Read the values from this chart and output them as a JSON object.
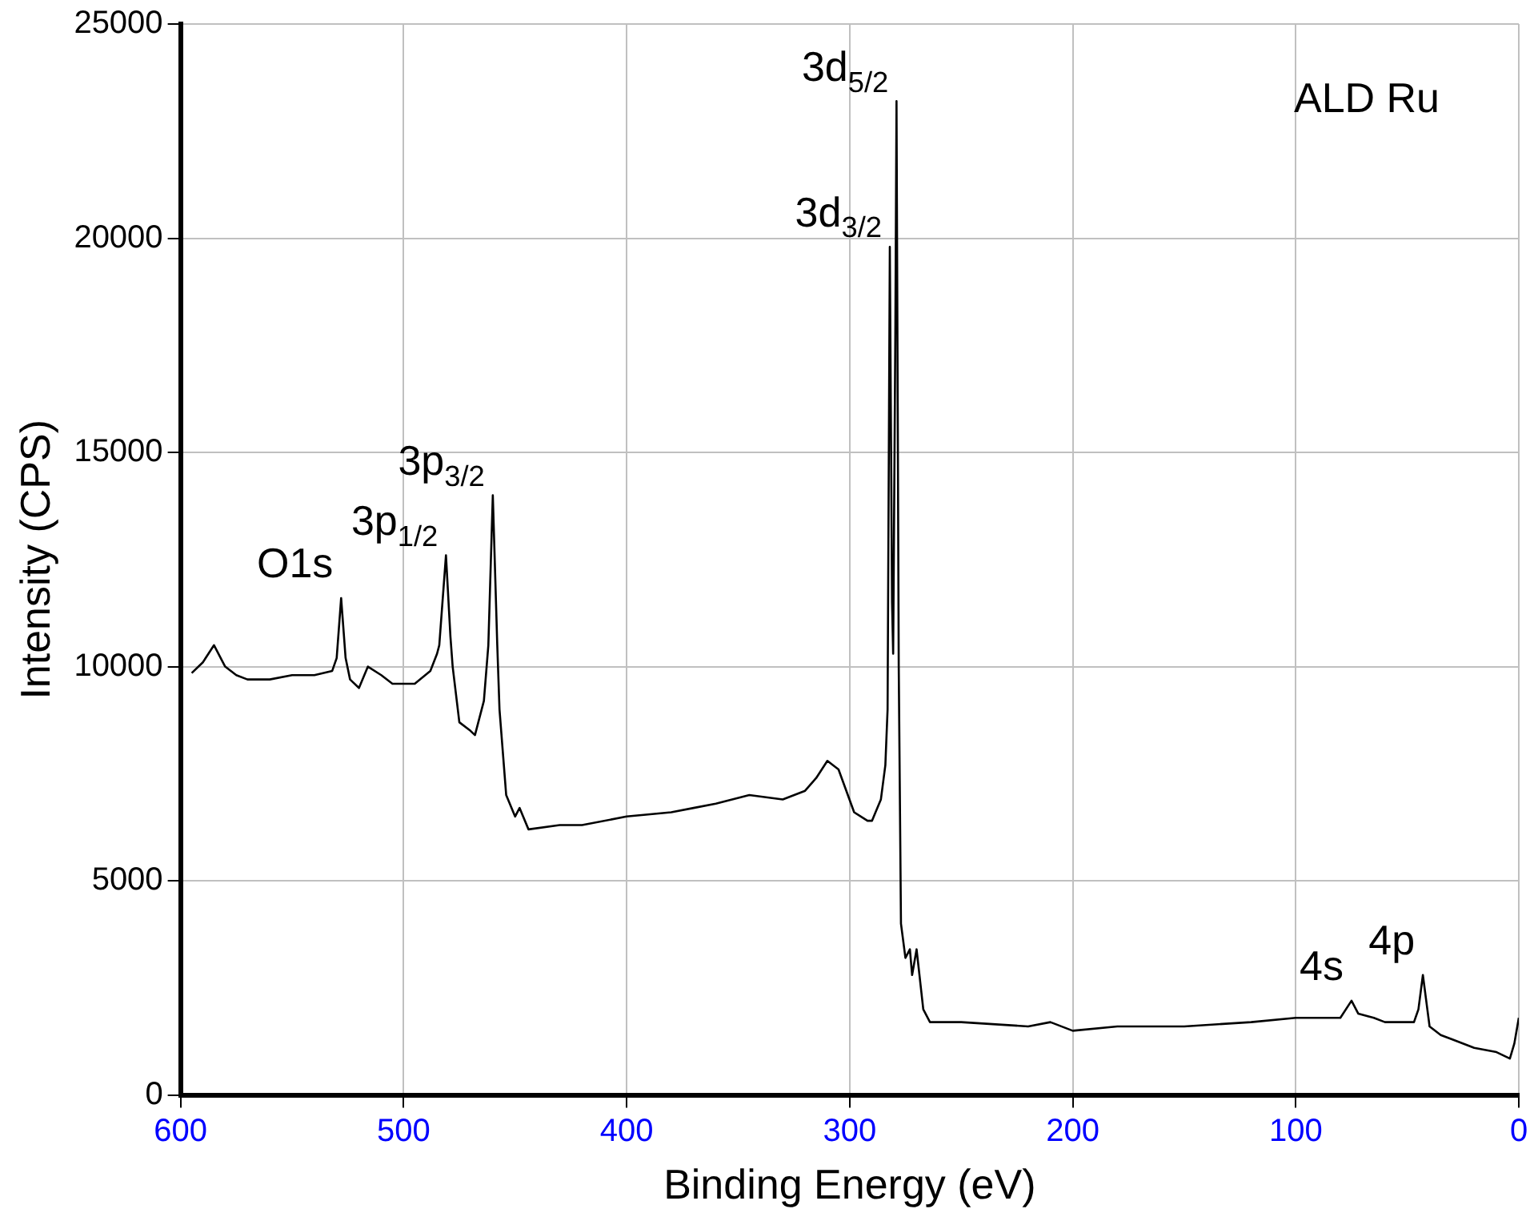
{
  "chart_data": {
    "type": "line",
    "xlabel": "Binding Energy (eV)",
    "ylabel": "Intensity (CPS)",
    "xlim": [
      600,
      0
    ],
    "xticks": [
      600,
      500,
      400,
      300,
      200,
      100,
      0
    ],
    "ylim": [
      0,
      25000
    ],
    "yticks": [
      0,
      5000,
      10000,
      15000,
      20000,
      25000
    ],
    "grid": true,
    "legend": false,
    "marker": "none",
    "line_style": "solid",
    "series": [
      {
        "color": "#000000",
        "x": [
          595,
          590,
          585,
          580,
          575,
          570,
          560,
          550,
          540,
          532,
          530,
          528,
          526,
          524,
          520,
          516,
          510,
          505,
          495,
          488,
          485,
          484,
          481,
          479,
          478,
          475,
          470,
          468,
          464,
          462,
          460,
          458,
          457,
          454,
          450,
          448,
          444,
          430,
          420,
          400,
          380,
          370,
          360,
          345,
          330,
          320,
          315,
          310,
          305,
          298,
          292,
          290,
          286,
          284,
          283,
          282,
          281,
          280.5,
          279.5,
          279,
          278,
          277,
          275,
          273,
          272,
          270,
          267,
          264,
          250,
          220,
          210,
          200,
          180,
          150,
          120,
          100,
          90,
          80,
          75,
          72,
          65,
          60,
          50,
          47,
          45,
          43,
          41,
          40,
          35,
          30,
          20,
          10,
          4,
          2,
          0
        ],
        "values": [
          9850,
          10100,
          10500,
          10000,
          9800,
          9700,
          9700,
          9800,
          9800,
          9900,
          10200,
          11600,
          10200,
          9700,
          9500,
          10000,
          9800,
          9600,
          9600,
          9900,
          10300,
          10500,
          12600,
          10700,
          10000,
          8700,
          8500,
          8400,
          9200,
          10500,
          14000,
          10500,
          9000,
          7000,
          6500,
          6700,
          6200,
          6300,
          6300,
          6500,
          6600,
          6700,
          6800,
          7000,
          6900,
          7100,
          7400,
          7800,
          7600,
          6600,
          6400,
          6400,
          6900,
          7700,
          9000,
          19800,
          11500,
          10300,
          18000,
          23200,
          10000,
          4000,
          3200,
          3400,
          2800,
          3400,
          2000,
          1700,
          1700,
          1600,
          1700,
          1500,
          1600,
          1600,
          1700,
          1800,
          1800,
          1800,
          2200,
          1900,
          1800,
          1700,
          1700,
          1700,
          2000,
          2800,
          2000,
          1600,
          1400,
          1300,
          1100,
          1000,
          850,
          1200,
          1800
        ]
      }
    ],
    "annotations": [
      {
        "text": "O1s",
        "x": 528,
        "y": 11600
      },
      {
        "text": "3p$_{1/2}$",
        "x": 481,
        "y": 12600
      },
      {
        "text": "3p$_{3/2}$",
        "x": 460,
        "y": 14000
      },
      {
        "text": "3d$_{3/2}$",
        "x": 282,
        "y": 19800
      },
      {
        "text": "3d$_{5/2}$",
        "x": 279,
        "y": 23200
      },
      {
        "text": "4s",
        "x": 75,
        "y": 2200
      },
      {
        "text": "4p",
        "x": 43,
        "y": 2800
      },
      "ALD Ru"
    ]
  }
}
